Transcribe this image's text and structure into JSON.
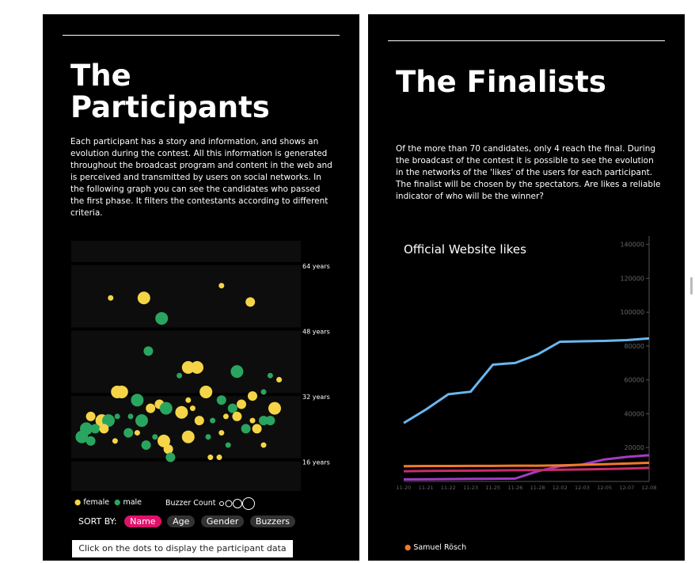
{
  "left": {
    "title_line1": "The",
    "title_line2": "Participants",
    "description": "Each participant has a story and information, and shows an evolution during the contest. All this information is generated throughout the broadcast program and content in the web and is perceived and transmitted by users on social networks.  In the following graph you can see the candidates who passed the first phase. It filters the contestants according to different criteria.",
    "age_labels": [
      "64 years",
      "48 years",
      "32 years",
      "16 years"
    ],
    "legend_female": "female",
    "legend_male": "male",
    "buzzer_label": "Buzzer Count",
    "sort_label": "SORT BY:",
    "sort_options": [
      "Name",
      "Age",
      "Gender",
      "Buzzers"
    ],
    "active_sort": "Name",
    "hint": "Click on the dots to display the participant data",
    "colors": {
      "female": "#f5d547",
      "male": "#2aa55f",
      "active": "#e0116a"
    }
  },
  "right": {
    "title": "The Finalists",
    "description": "Of the more than 70 candidates, only 4 reach the final. During the broadcast of the contest it is possible to see the evolution in the networks of the 'likes' of the users for each participant. The finalist will be chosen by the spectators. Are likes a reliable indicator of who will be the winner?",
    "legend_item": "Samuel Rösch",
    "legend_color": "#f07a2a"
  },
  "chart_data": {
    "type": "line",
    "title": "Official Website likes",
    "x": [
      "11-20",
      "11-21",
      "11-22",
      "11-23",
      "11-25",
      "11-26",
      "11-28",
      "12-02",
      "12-03",
      "12-05",
      "12-07",
      "12-08"
    ],
    "ylim": [
      0,
      145000
    ],
    "y_ticks": [
      20000,
      40000,
      60000,
      80000,
      100000,
      120000,
      140000
    ],
    "series": [
      {
        "name": "",
        "color": "#6ab7ef",
        "values": [
          34500,
          42500,
          51500,
          53000,
          69000,
          70000,
          75000,
          82500,
          82800,
          83000,
          83500,
          84500
        ]
      },
      {
        "name": "",
        "color": "#a33bc4",
        "values": [
          1200,
          1300,
          1400,
          1500,
          1600,
          1700,
          6000,
          9000,
          10000,
          13000,
          14500,
          15500
        ]
      },
      {
        "name": "",
        "color": "#c62d6c",
        "values": [
          6000,
          6200,
          6300,
          6400,
          6500,
          6600,
          6700,
          6900,
          7100,
          7300,
          7600,
          8000
        ]
      },
      {
        "name": "Samuel Rösch",
        "color": "#f07a2a",
        "values": [
          9000,
          9100,
          9100,
          9200,
          9200,
          9300,
          9300,
          9500,
          9800,
          10200,
          10600,
          11000
        ]
      }
    ]
  },
  "scatter_data": {
    "type": "scatter",
    "ylim": [
      8,
      70
    ],
    "y_ticks": [
      64,
      48,
      32,
      16
    ],
    "points": [
      {
        "x": 0.16,
        "age": 56,
        "g": "f",
        "b": 1
      },
      {
        "x": 0.31,
        "age": 56,
        "g": "f",
        "b": 3
      },
      {
        "x": 0.66,
        "age": 59,
        "g": "f",
        "b": 1
      },
      {
        "x": 0.79,
        "age": 55,
        "g": "f",
        "b": 2
      },
      {
        "x": 0.39,
        "age": 51,
        "g": "m",
        "b": 3
      },
      {
        "x": 0.33,
        "age": 43,
        "g": "m",
        "b": 2
      },
      {
        "x": 0.51,
        "age": 39,
        "g": "f",
        "b": 3
      },
      {
        "x": 0.55,
        "age": 39,
        "g": "f",
        "b": 3
      },
      {
        "x": 0.73,
        "age": 38,
        "g": "m",
        "b": 3
      },
      {
        "x": 0.47,
        "age": 37,
        "g": "m",
        "b": 1
      },
      {
        "x": 0.88,
        "age": 37,
        "g": "m",
        "b": 1
      },
      {
        "x": 0.92,
        "age": 36,
        "g": "f",
        "b": 1
      },
      {
        "x": 0.19,
        "age": 33,
        "g": "f",
        "b": 3
      },
      {
        "x": 0.21,
        "age": 33,
        "g": "f",
        "b": 3
      },
      {
        "x": 0.59,
        "age": 33,
        "g": "f",
        "b": 3
      },
      {
        "x": 0.8,
        "age": 32,
        "g": "f",
        "b": 2
      },
      {
        "x": 0.85,
        "age": 33,
        "g": "m",
        "b": 1
      },
      {
        "x": 0.28,
        "age": 31,
        "g": "m",
        "b": 3
      },
      {
        "x": 0.66,
        "age": 31,
        "g": "m",
        "b": 2
      },
      {
        "x": 0.38,
        "age": 30,
        "g": "f",
        "b": 2
      },
      {
        "x": 0.41,
        "age": 29,
        "g": "m",
        "b": 3
      },
      {
        "x": 0.51,
        "age": 31,
        "g": "f",
        "b": 1
      },
      {
        "x": 0.53,
        "age": 29,
        "g": "f",
        "b": 1
      },
      {
        "x": 0.75,
        "age": 30,
        "g": "f",
        "b": 2
      },
      {
        "x": 0.71,
        "age": 29,
        "g": "m",
        "b": 2
      },
      {
        "x": 0.9,
        "age": 29,
        "g": "f",
        "b": 3
      },
      {
        "x": 0.19,
        "age": 27,
        "g": "m",
        "b": 1
      },
      {
        "x": 0.34,
        "age": 29,
        "g": "f",
        "b": 2
      },
      {
        "x": 0.48,
        "age": 28,
        "g": "f",
        "b": 3
      },
      {
        "x": 0.07,
        "age": 27,
        "g": "f",
        "b": 2
      },
      {
        "x": 0.12,
        "age": 26,
        "g": "f",
        "b": 3
      },
      {
        "x": 0.15,
        "age": 26,
        "g": "m",
        "b": 3
      },
      {
        "x": 0.25,
        "age": 27,
        "g": "m",
        "b": 1
      },
      {
        "x": 0.3,
        "age": 26,
        "g": "m",
        "b": 3
      },
      {
        "x": 0.56,
        "age": 26,
        "g": "f",
        "b": 2
      },
      {
        "x": 0.62,
        "age": 26,
        "g": "m",
        "b": 1
      },
      {
        "x": 0.68,
        "age": 27,
        "g": "f",
        "b": 1
      },
      {
        "x": 0.73,
        "age": 27,
        "g": "f",
        "b": 2
      },
      {
        "x": 0.8,
        "age": 26,
        "g": "f",
        "b": 1
      },
      {
        "x": 0.85,
        "age": 26,
        "g": "m",
        "b": 2
      },
      {
        "x": 0.88,
        "age": 26,
        "g": "m",
        "b": 2
      },
      {
        "x": 0.05,
        "age": 24,
        "g": "m",
        "b": 3
      },
      {
        "x": 0.09,
        "age": 24,
        "g": "m",
        "b": 2
      },
      {
        "x": 0.13,
        "age": 24,
        "g": "f",
        "b": 2
      },
      {
        "x": 0.03,
        "age": 22,
        "g": "m",
        "b": 3
      },
      {
        "x": 0.24,
        "age": 23,
        "g": "m",
        "b": 2
      },
      {
        "x": 0.28,
        "age": 23,
        "g": "f",
        "b": 1
      },
      {
        "x": 0.4,
        "age": 21,
        "g": "f",
        "b": 3
      },
      {
        "x": 0.51,
        "age": 22,
        "g": "f",
        "b": 3
      },
      {
        "x": 0.6,
        "age": 22,
        "g": "m",
        "b": 1
      },
      {
        "x": 0.66,
        "age": 23,
        "g": "f",
        "b": 1
      },
      {
        "x": 0.77,
        "age": 24,
        "g": "m",
        "b": 2
      },
      {
        "x": 0.82,
        "age": 24,
        "g": "f",
        "b": 2
      },
      {
        "x": 0.36,
        "age": 22,
        "g": "m",
        "b": 1
      },
      {
        "x": 0.07,
        "age": 21,
        "g": "m",
        "b": 2
      },
      {
        "x": 0.18,
        "age": 21,
        "g": "f",
        "b": 1
      },
      {
        "x": 0.32,
        "age": 20,
        "g": "m",
        "b": 2
      },
      {
        "x": 0.42,
        "age": 19,
        "g": "f",
        "b": 2
      },
      {
        "x": 0.65,
        "age": 17,
        "g": "f",
        "b": 1
      },
      {
        "x": 0.61,
        "age": 17,
        "g": "f",
        "b": 1
      },
      {
        "x": 0.43,
        "age": 17,
        "g": "m",
        "b": 2
      },
      {
        "x": 0.85,
        "age": 20,
        "g": "f",
        "b": 1
      },
      {
        "x": 0.69,
        "age": 20,
        "g": "m",
        "b": 1
      }
    ]
  }
}
